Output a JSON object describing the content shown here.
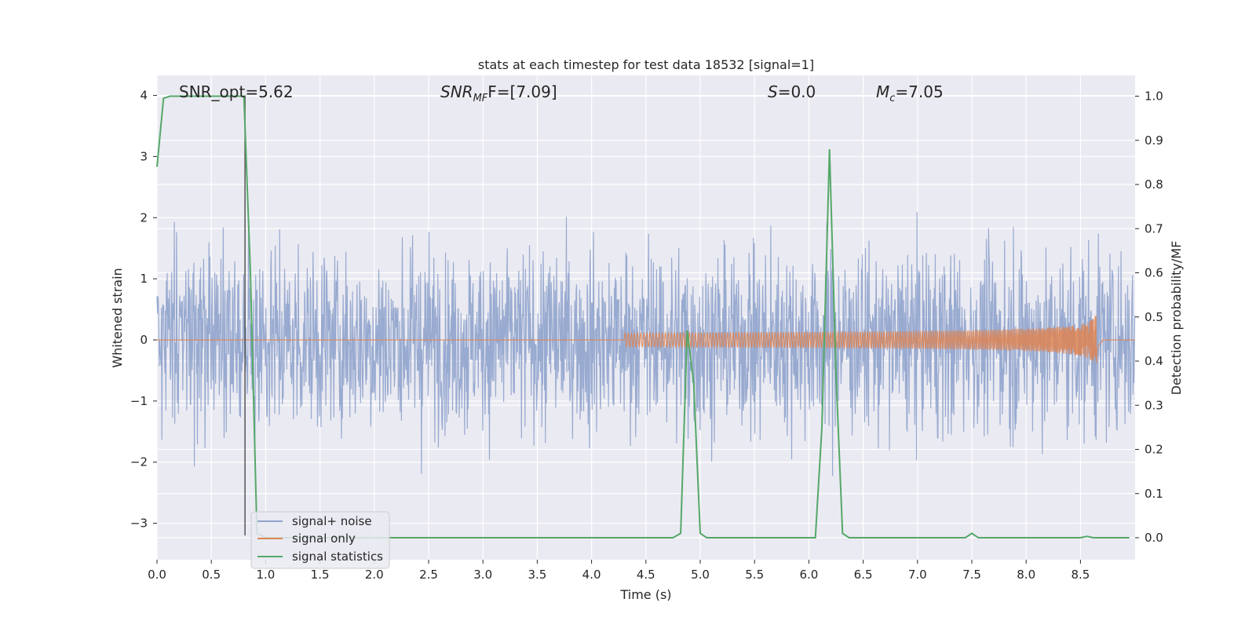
{
  "chart_data": {
    "type": "line",
    "title": "stats at each timestep for test data 18532 [signal=1]",
    "xlabel": "Time (s)",
    "ylabel": "Whitened strain",
    "y2label": "Detection probability/MF",
    "xlim": [
      0,
      9
    ],
    "ylim": [
      -3.5,
      4.35
    ],
    "y2lim": [
      -0.05,
      1.05
    ],
    "x_ticks": [
      "0.0",
      "0.5",
      "1.0",
      "1.5",
      "2.0",
      "2.5",
      "3.0",
      "3.5",
      "4.0",
      "4.5",
      "5.0",
      "5.5",
      "6.0",
      "6.5",
      "7.0",
      "7.5",
      "8.0",
      "8.5"
    ],
    "y_ticks": [
      "4",
      "3",
      "2",
      "1",
      "0",
      "−1",
      "−2",
      "−3"
    ],
    "y2_ticks": [
      "1.0",
      "0.9",
      "0.8",
      "0.7",
      "0.6",
      "0.5",
      "0.4",
      "0.3",
      "0.2",
      "0.1",
      "0.0"
    ],
    "grid": true,
    "legend_position": "lower-left",
    "annotations": {
      "snr_opt": "SNR_opt=5.62",
      "snr_mf_label": "SNR",
      "snr_mf_sub": "MF",
      "snr_mf_value": "F=[7.09]",
      "s_label": "S",
      "s_value": "=0.0",
      "mc_label": "M",
      "mc_sub": "c",
      "mc_value": "=7.05"
    },
    "vertical_line_x": 0.81,
    "series": [
      {
        "name": "signal+ noise",
        "color": "#8fa3cc",
        "axis": "left",
        "description_range": [
          -3.2,
          4.0
        ]
      },
      {
        "name": "signal only",
        "color": "#dd8452",
        "axis": "left",
        "chirp": {
          "start": 4.3,
          "peak_x": 8.65,
          "peak_amp": 0.45,
          "end": 8.7
        }
      },
      {
        "name": "signal statistics",
        "color": "#55a868",
        "axis": "right",
        "x": [
          0.0,
          0.06,
          0.12,
          0.2,
          0.3,
          0.4,
          0.5,
          0.6,
          0.7,
          0.75,
          0.8,
          0.86,
          0.92,
          1.0,
          1.5,
          2.0,
          2.5,
          3.0,
          3.5,
          4.0,
          4.5,
          4.75,
          4.82,
          4.88,
          4.94,
          5.0,
          5.06,
          5.5,
          6.0,
          6.06,
          6.12,
          6.19,
          6.25,
          6.31,
          6.37,
          6.5,
          7.0,
          7.44,
          7.5,
          7.56,
          7.62,
          8.0,
          8.5,
          8.56,
          8.62,
          8.68,
          8.95
        ],
        "y": [
          0.84,
          0.995,
          1.0,
          1.0,
          1.0,
          1.0,
          1.0,
          1.0,
          1.0,
          1.0,
          1.0,
          0.6,
          0.01,
          0.0,
          0.0,
          0.0,
          0.0,
          0.0,
          0.0,
          0.0,
          0.0,
          0.0,
          0.01,
          0.47,
          0.35,
          0.01,
          0.0,
          0.0,
          0.0,
          0.0,
          0.25,
          0.88,
          0.37,
          0.01,
          0.0,
          0.0,
          0.0,
          0.0,
          0.01,
          0.0,
          0.0,
          0.0,
          0.0,
          0.003,
          0.0,
          0.0,
          0.0
        ]
      }
    ]
  }
}
